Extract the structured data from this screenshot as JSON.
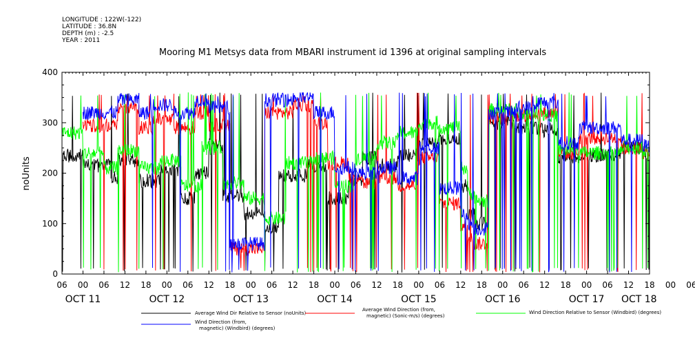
{
  "header": {
    "meta_lines": [
      "LONGITUDE : 122W(-122)",
      "LATITUDE : 36.8N",
      "DEPTH (m) : -2.5",
      "YEAR : 2011"
    ]
  },
  "chart_data": {
    "type": "line",
    "title": "Mooring M1 Metsys data from MBARI instrument id 1396 at original sampling intervals",
    "ylabel": "noUnits",
    "xlabel": "",
    "ylim": [
      0,
      400
    ],
    "y_ticks": [
      "0",
      "100",
      "200",
      "300",
      "400"
    ],
    "x_range_hours": [
      0,
      168
    ],
    "x_hour_labels": [
      "06",
      "00",
      "06",
      "12",
      "18",
      "00",
      "06",
      "12",
      "18",
      "00",
      "06",
      "12",
      "18",
      "00",
      "06",
      "12",
      "18",
      "00",
      "06",
      "12",
      "18",
      "00",
      "06",
      "12",
      "18",
      "00",
      "06",
      "12",
      "18",
      "00",
      "06",
      "12",
      "18",
      "00",
      "06"
    ],
    "x_day_labels": [
      "OCT 11",
      "OCT 12",
      "OCT 13",
      "OCT 14",
      "OCT 15",
      "OCT 16",
      "OCT 17",
      "OCT 18"
    ],
    "grid": false,
    "legend_position": "bottom",
    "series": [
      {
        "name": "Average Wind Dir Relative to Sensor (noUnits)",
        "color": "#000000"
      },
      {
        "name": "Average Wind Direction (from, magnetic) (Sonic-m/s) (degrees)",
        "color": "#ff0000"
      },
      {
        "name": "Wind Direction Relative to Sensor (Windbird) (degrees)",
        "color": "#00ff00"
      },
      {
        "name": "Wind Direction (from, magnetic) (Windbird) (degrees)",
        "color": "#0000ff"
      }
    ],
    "series_levels": [
      {
        "name": "Average Wind Dir Relative to Sensor (noUnits)",
        "segments": [
          [
            0,
            6,
            235
          ],
          [
            6,
            14,
            215
          ],
          [
            14,
            16,
            190
          ],
          [
            16,
            22,
            225
          ],
          [
            22,
            28,
            185
          ],
          [
            28,
            34,
            205
          ],
          [
            34,
            38,
            150
          ],
          [
            38,
            42,
            200
          ],
          [
            42,
            46,
            255
          ],
          [
            46,
            52,
            155
          ],
          [
            52,
            58,
            120
          ],
          [
            58,
            62,
            90
          ],
          [
            62,
            70,
            195
          ],
          [
            70,
            76,
            215
          ],
          [
            76,
            82,
            150
          ],
          [
            82,
            86,
            185
          ],
          [
            86,
            90,
            230
          ],
          [
            90,
            96,
            215
          ],
          [
            96,
            102,
            235
          ],
          [
            102,
            108,
            260
          ],
          [
            108,
            114,
            270
          ],
          [
            114,
            116,
            175
          ],
          [
            116,
            118,
            120
          ],
          [
            118,
            122,
            100
          ],
          [
            122,
            130,
            300
          ],
          [
            130,
            136,
            290
          ],
          [
            136,
            142,
            285
          ],
          [
            142,
            148,
            230
          ],
          [
            148,
            160,
            235
          ],
          [
            160,
            166,
            250
          ],
          [
            166,
            168,
            240
          ]
        ]
      },
      {
        "name": "Average Wind Direction (from, magnetic) (Sonic-m/s) (degrees)",
        "segments": [
          [
            6,
            16,
            295
          ],
          [
            16,
            22,
            330
          ],
          [
            22,
            26,
            290
          ],
          [
            26,
            32,
            305
          ],
          [
            32,
            38,
            290
          ],
          [
            38,
            42,
            320
          ],
          [
            42,
            48,
            295
          ],
          [
            48,
            58,
            50
          ],
          [
            58,
            66,
            320
          ],
          [
            66,
            72,
            335
          ],
          [
            72,
            76,
            300
          ],
          [
            76,
            82,
            220
          ],
          [
            82,
            86,
            195
          ],
          [
            86,
            90,
            180
          ],
          [
            90,
            96,
            190
          ],
          [
            96,
            102,
            175
          ],
          [
            102,
            108,
            230
          ],
          [
            108,
            114,
            140
          ],
          [
            114,
            116,
            95
          ],
          [
            116,
            118,
            75
          ],
          [
            118,
            122,
            60
          ],
          [
            122,
            130,
            310
          ],
          [
            130,
            136,
            315
          ],
          [
            136,
            142,
            320
          ],
          [
            142,
            148,
            240
          ],
          [
            148,
            160,
            270
          ],
          [
            160,
            166,
            250
          ],
          [
            166,
            168,
            240
          ]
        ]
      },
      {
        "name": "Wind Direction Relative to Sensor (Windbird) (degrees)",
        "segments": [
          [
            0,
            6,
            280
          ],
          [
            6,
            12,
            240
          ],
          [
            12,
            16,
            210
          ],
          [
            16,
            22,
            245
          ],
          [
            22,
            28,
            210
          ],
          [
            28,
            34,
            225
          ],
          [
            34,
            40,
            175
          ],
          [
            40,
            46,
            250
          ],
          [
            46,
            52,
            180
          ],
          [
            52,
            58,
            150
          ],
          [
            58,
            64,
            110
          ],
          [
            64,
            72,
            220
          ],
          [
            72,
            78,
            230
          ],
          [
            78,
            84,
            175
          ],
          [
            84,
            90,
            230
          ],
          [
            90,
            96,
            260
          ],
          [
            96,
            102,
            280
          ],
          [
            102,
            108,
            300
          ],
          [
            108,
            114,
            290
          ],
          [
            114,
            116,
            210
          ],
          [
            116,
            118,
            160
          ],
          [
            118,
            122,
            145
          ],
          [
            122,
            130,
            325
          ],
          [
            130,
            136,
            320
          ],
          [
            136,
            142,
            315
          ],
          [
            142,
            148,
            245
          ],
          [
            148,
            160,
            240
          ],
          [
            160,
            166,
            250
          ],
          [
            166,
            168,
            245
          ]
        ]
      },
      {
        "name": "Wind Direction (from, magnetic) (Windbird) (degrees)",
        "segments": [
          [
            6,
            16,
            320
          ],
          [
            16,
            22,
            345
          ],
          [
            22,
            26,
            320
          ],
          [
            26,
            32,
            335
          ],
          [
            32,
            38,
            320
          ],
          [
            38,
            42,
            345
          ],
          [
            42,
            48,
            330
          ],
          [
            48,
            58,
            60
          ],
          [
            58,
            66,
            345
          ],
          [
            66,
            72,
            350
          ],
          [
            72,
            78,
            320
          ],
          [
            78,
            84,
            210
          ],
          [
            84,
            90,
            200
          ],
          [
            90,
            96,
            210
          ],
          [
            96,
            102,
            190
          ],
          [
            102,
            108,
            250
          ],
          [
            108,
            114,
            170
          ],
          [
            114,
            116,
            120
          ],
          [
            116,
            118,
            100
          ],
          [
            118,
            122,
            90
          ],
          [
            122,
            130,
            320
          ],
          [
            130,
            136,
            330
          ],
          [
            136,
            142,
            340
          ],
          [
            142,
            148,
            260
          ],
          [
            148,
            160,
            290
          ],
          [
            160,
            166,
            265
          ],
          [
            166,
            168,
            255
          ]
        ]
      }
    ]
  }
}
